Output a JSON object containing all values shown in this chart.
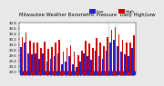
{
  "title": "Milwaukee Weather Barometric Pressure",
  "subtitle": "Daily High/Low",
  "high_color": "#cc0000",
  "low_color": "#2222cc",
  "legend_high": "High",
  "legend_low": "Low",
  "background_color": "#e8e8e8",
  "plot_bg_color": "#ffffff",
  "ylim": [
    29.0,
    30.8
  ],
  "ytick_labels": [
    "29.0",
    "29.2",
    "29.4",
    "29.6",
    "29.8",
    "30.0",
    "30.2",
    "30.4",
    "30.6",
    "30.8"
  ],
  "ytick_vals": [
    29.0,
    29.2,
    29.4,
    29.6,
    29.8,
    30.0,
    30.2,
    30.4,
    30.6,
    30.8
  ],
  "bar_width": 0.42,
  "highs": [
    30.28,
    30.42,
    30.12,
    30.08,
    30.05,
    29.88,
    30.1,
    29.82,
    29.9,
    30.05,
    30.15,
    29.72,
    29.85,
    29.98,
    29.72,
    29.6,
    29.78,
    30.12,
    30.02,
    29.88,
    30.22,
    30.08,
    29.92,
    30.28,
    30.52,
    30.62,
    30.38,
    30.18,
    30.08,
    30.05,
    30.32
  ],
  "lows": [
    29.9,
    30.08,
    29.68,
    29.62,
    29.68,
    29.48,
    29.65,
    29.35,
    29.45,
    29.58,
    29.68,
    29.28,
    29.38,
    29.55,
    29.25,
    29.18,
    29.35,
    29.68,
    29.55,
    29.42,
    29.75,
    29.58,
    29.45,
    29.78,
    30.05,
    30.15,
    29.92,
    29.72,
    29.62,
    29.58,
    29.85
  ],
  "xlabels": [
    "1",
    "2",
    "3",
    "4",
    "5",
    "6",
    "7",
    "8",
    "9",
    "10",
    "11",
    "12",
    "13",
    "14",
    "15",
    "16",
    "17",
    "18",
    "19",
    "20",
    "21",
    "22",
    "23",
    "24",
    "25",
    "26",
    "27",
    "28",
    "29",
    "30",
    "31"
  ],
  "dotted_vline_x": 23.5,
  "title_fontsize": 3.8,
  "tick_fontsize": 2.8,
  "legend_fontsize": 3.2
}
